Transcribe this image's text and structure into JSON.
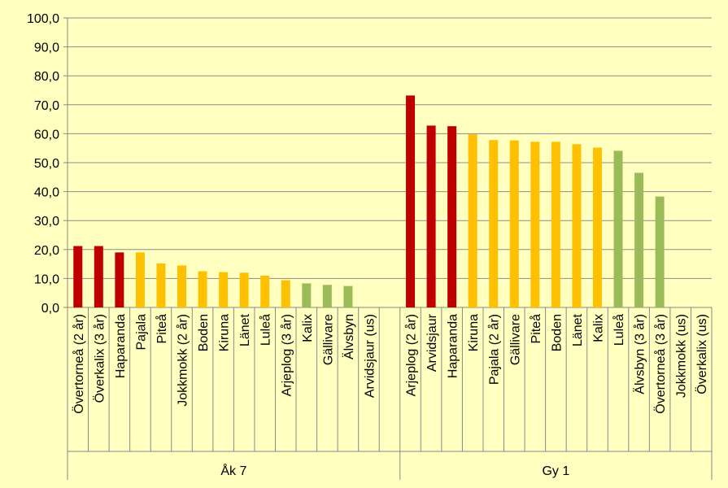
{
  "chart_data": {
    "type": "bar",
    "ylim": [
      0,
      100
    ],
    "yticks": [
      {
        "value": 0,
        "label": "0,0"
      },
      {
        "value": 10,
        "label": "10,0"
      },
      {
        "value": 20,
        "label": "20,0"
      },
      {
        "value": 30,
        "label": "30,0"
      },
      {
        "value": 40,
        "label": "40,0"
      },
      {
        "value": 50,
        "label": "50,0"
      },
      {
        "value": 60,
        "label": "60,0"
      },
      {
        "value": 70,
        "label": "70,0"
      },
      {
        "value": 80,
        "label": "80,0"
      },
      {
        "value": 90,
        "label": "90,0"
      },
      {
        "value": 100,
        "label": "100,0"
      }
    ],
    "grid": true,
    "groups": [
      {
        "name": "Åk 7",
        "categories": [
          "Övertorneå (2 år)",
          "Överkalix (3 år)",
          "Haparanda",
          "Pajala",
          "Piteå",
          "Jokkmokk (2 år)",
          "Boden",
          "Kiruna",
          "Länet",
          "Luleå",
          "Arjeplog (3 år)",
          "Kalix",
          "Gällivare",
          "Älvsbyn",
          "Arvidsjaur (us)",
          null
        ],
        "values": [
          21.2,
          21.2,
          19.0,
          19.0,
          15.2,
          14.5,
          12.5,
          12.2,
          12.0,
          11.0,
          9.4,
          8.3,
          7.8,
          7.4,
          null,
          null
        ],
        "colors": [
          "#c00000",
          "#c00000",
          "#c00000",
          "#ffc000",
          "#ffc000",
          "#ffc000",
          "#ffc000",
          "#ffc000",
          "#ffc000",
          "#ffc000",
          "#ffc000",
          "#9bbb59",
          "#9bbb59",
          "#9bbb59",
          "#9bbb59",
          "#9bbb59"
        ]
      },
      {
        "name": "Gy 1",
        "categories": [
          "Arjeplog (2 år)",
          "Arvidsjaur",
          "Haparanda",
          "Kiruna",
          "Pajala (2 år)",
          "Gällivare",
          "Piteå",
          "Boden",
          "Länet",
          "Kalix",
          "Luleå",
          "Älvsbyn (3 år)",
          "Övertorneå (3 år)",
          "Jokkmokk (us)",
          "Överkalix (us)"
        ],
        "values": [
          73.2,
          62.8,
          62.6,
          59.8,
          57.8,
          57.7,
          57.2,
          57.2,
          56.4,
          55.2,
          54.1,
          46.5,
          38.3,
          null,
          null
        ],
        "colors": [
          "#c00000",
          "#c00000",
          "#c00000",
          "#ffc000",
          "#ffc000",
          "#ffc000",
          "#ffc000",
          "#ffc000",
          "#ffc000",
          "#ffc000",
          "#9bbb59",
          "#9bbb59",
          "#9bbb59",
          "#9bbb59",
          "#9bbb59"
        ]
      }
    ]
  }
}
